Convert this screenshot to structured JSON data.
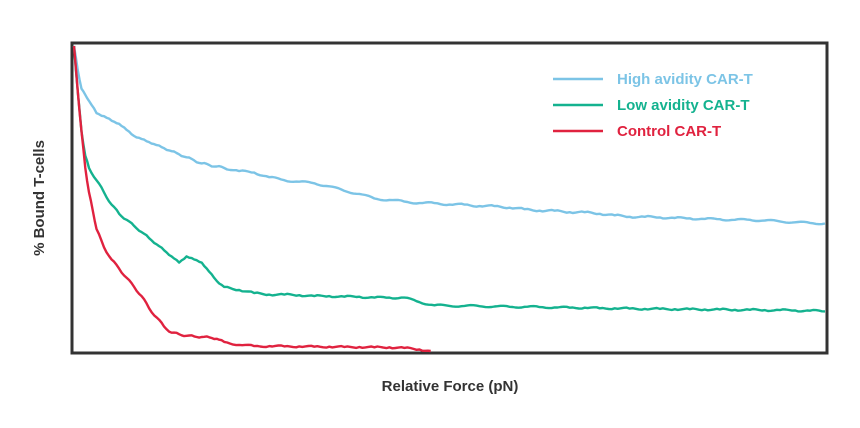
{
  "colors": {
    "high": "#7cc4e6",
    "low": "#14b28f",
    "control": "#e0223f",
    "frame": "#333333",
    "axis_text": "#333333"
  },
  "chart_data": {
    "type": "line",
    "title": "",
    "xlabel": "Relative Force (pN)",
    "ylabel": "% Bound T-cells",
    "xlim": [
      0,
      100
    ],
    "ylim": [
      0,
      100
    ],
    "grid": false,
    "ticks": false,
    "legend_position": "top-right",
    "series": [
      {
        "name": "High avidity CAR-T",
        "color": "#7cc4e6",
        "x": [
          0,
          0.5,
          1,
          1.5,
          2,
          3,
          4,
          5,
          6,
          7,
          8,
          9,
          10,
          11,
          12,
          13,
          14,
          15,
          16,
          17,
          18,
          19,
          20,
          22,
          24,
          26,
          28,
          30,
          32,
          34,
          36,
          38,
          40,
          42,
          44,
          46,
          48,
          50,
          52,
          54,
          56,
          58,
          60,
          62,
          64,
          66,
          68,
          70,
          72,
          74,
          76,
          78,
          80,
          82,
          84,
          86,
          88,
          90,
          92,
          94,
          96,
          98,
          100
        ],
        "y": [
          100,
          92,
          86,
          84,
          82,
          78,
          77,
          75.5,
          74.5,
          72.5,
          70.5,
          69.5,
          68.5,
          67.5,
          66.5,
          65.5,
          64.5,
          63.5,
          62.5,
          61.5,
          61,
          60.5,
          60,
          59,
          58.5,
          57,
          56,
          55.5,
          55,
          54,
          52.5,
          51.5,
          50,
          49.5,
          49,
          48.5,
          48.5,
          48,
          48,
          47.5,
          47.5,
          47,
          46.5,
          46,
          46,
          45.5,
          45.5,
          45,
          44.5,
          44,
          44,
          43.8,
          43.6,
          43.5,
          43.3,
          43.2,
          43,
          43,
          42.8,
          42.5,
          42.2,
          42,
          41.8
        ]
      },
      {
        "name": "Low avidity CAR-T",
        "color": "#14b28f",
        "x": [
          0,
          0.5,
          1,
          1.5,
          2,
          3,
          4,
          5,
          6,
          7,
          8,
          9,
          10,
          11,
          12,
          13,
          14,
          15,
          16,
          17,
          18,
          19,
          20,
          22,
          24,
          26,
          28,
          30,
          32,
          34,
          36,
          38,
          40,
          42,
          44,
          46,
          48,
          50,
          52,
          54,
          56,
          58,
          60,
          62,
          64,
          66,
          68,
          70,
          72,
          74,
          76,
          78,
          80,
          82,
          84,
          86,
          88,
          90,
          92,
          94,
          96,
          98,
          100
        ],
        "y": [
          100,
          85,
          72,
          64,
          60,
          56,
          52,
          48,
          45,
          43,
          41,
          39,
          37,
          35,
          33,
          31,
          29,
          31,
          30,
          29,
          26,
          23,
          21,
          20,
          19,
          18.5,
          18.5,
          18.3,
          18,
          18,
          17.8,
          17.8,
          17.5,
          17.5,
          17.5,
          16,
          15,
          14.8,
          14.8,
          14.7,
          14.6,
          14.5,
          14.5,
          14.4,
          14.3,
          14.2,
          14.2,
          14,
          14,
          13.9,
          13.8,
          13.8,
          13.7,
          13.7,
          13.6,
          13.6,
          13.5,
          13.5,
          13.4,
          13.4,
          13.3,
          13.2,
          13
        ]
      },
      {
        "name": "Control CAR-T",
        "color": "#e0223f",
        "x": [
          0,
          0.5,
          1,
          1.5,
          2,
          2.5,
          3,
          4,
          5,
          6,
          7,
          8,
          9,
          10,
          11,
          12,
          13,
          14,
          15,
          16,
          17,
          18,
          19,
          20,
          22,
          24,
          26,
          28,
          30,
          32,
          34,
          36,
          38,
          40,
          42,
          44,
          46,
          47.5
        ],
        "y": [
          100,
          85,
          72,
          60,
          52,
          46,
          40,
          34,
          30,
          27,
          24,
          21,
          18,
          14,
          11,
          8,
          6,
          5.5,
          5,
          4.8,
          4.6,
          4.5,
          4,
          3,
          2,
          1.6,
          1.6,
          1.5,
          1.5,
          1.4,
          1.4,
          1.3,
          1.3,
          1.2,
          1.2,
          1,
          0.5,
          0
        ]
      }
    ]
  }
}
